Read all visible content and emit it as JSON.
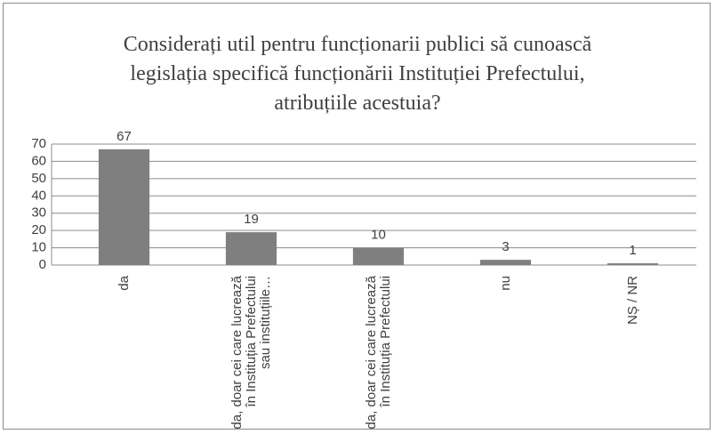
{
  "chart_data": {
    "type": "bar",
    "title": "Considerați util pentru funcționarii publici să cunoască legislația specifică funcționării Instituției Prefectului, atribuțiile acestuia?",
    "categories": [
      "da",
      "da, doar cei care lucrează în Instituția Prefectului sau instituțiile…",
      "da, doar cei care lucrează în Instituția Prefectului",
      "nu",
      "NȘ / NR"
    ],
    "values": [
      67,
      19,
      10,
      3,
      1
    ],
    "color": "#7f7f7f",
    "ylim": [
      0,
      70
    ],
    "yticks": [
      0,
      10,
      20,
      30,
      40,
      50,
      60,
      70
    ],
    "grid": true
  }
}
